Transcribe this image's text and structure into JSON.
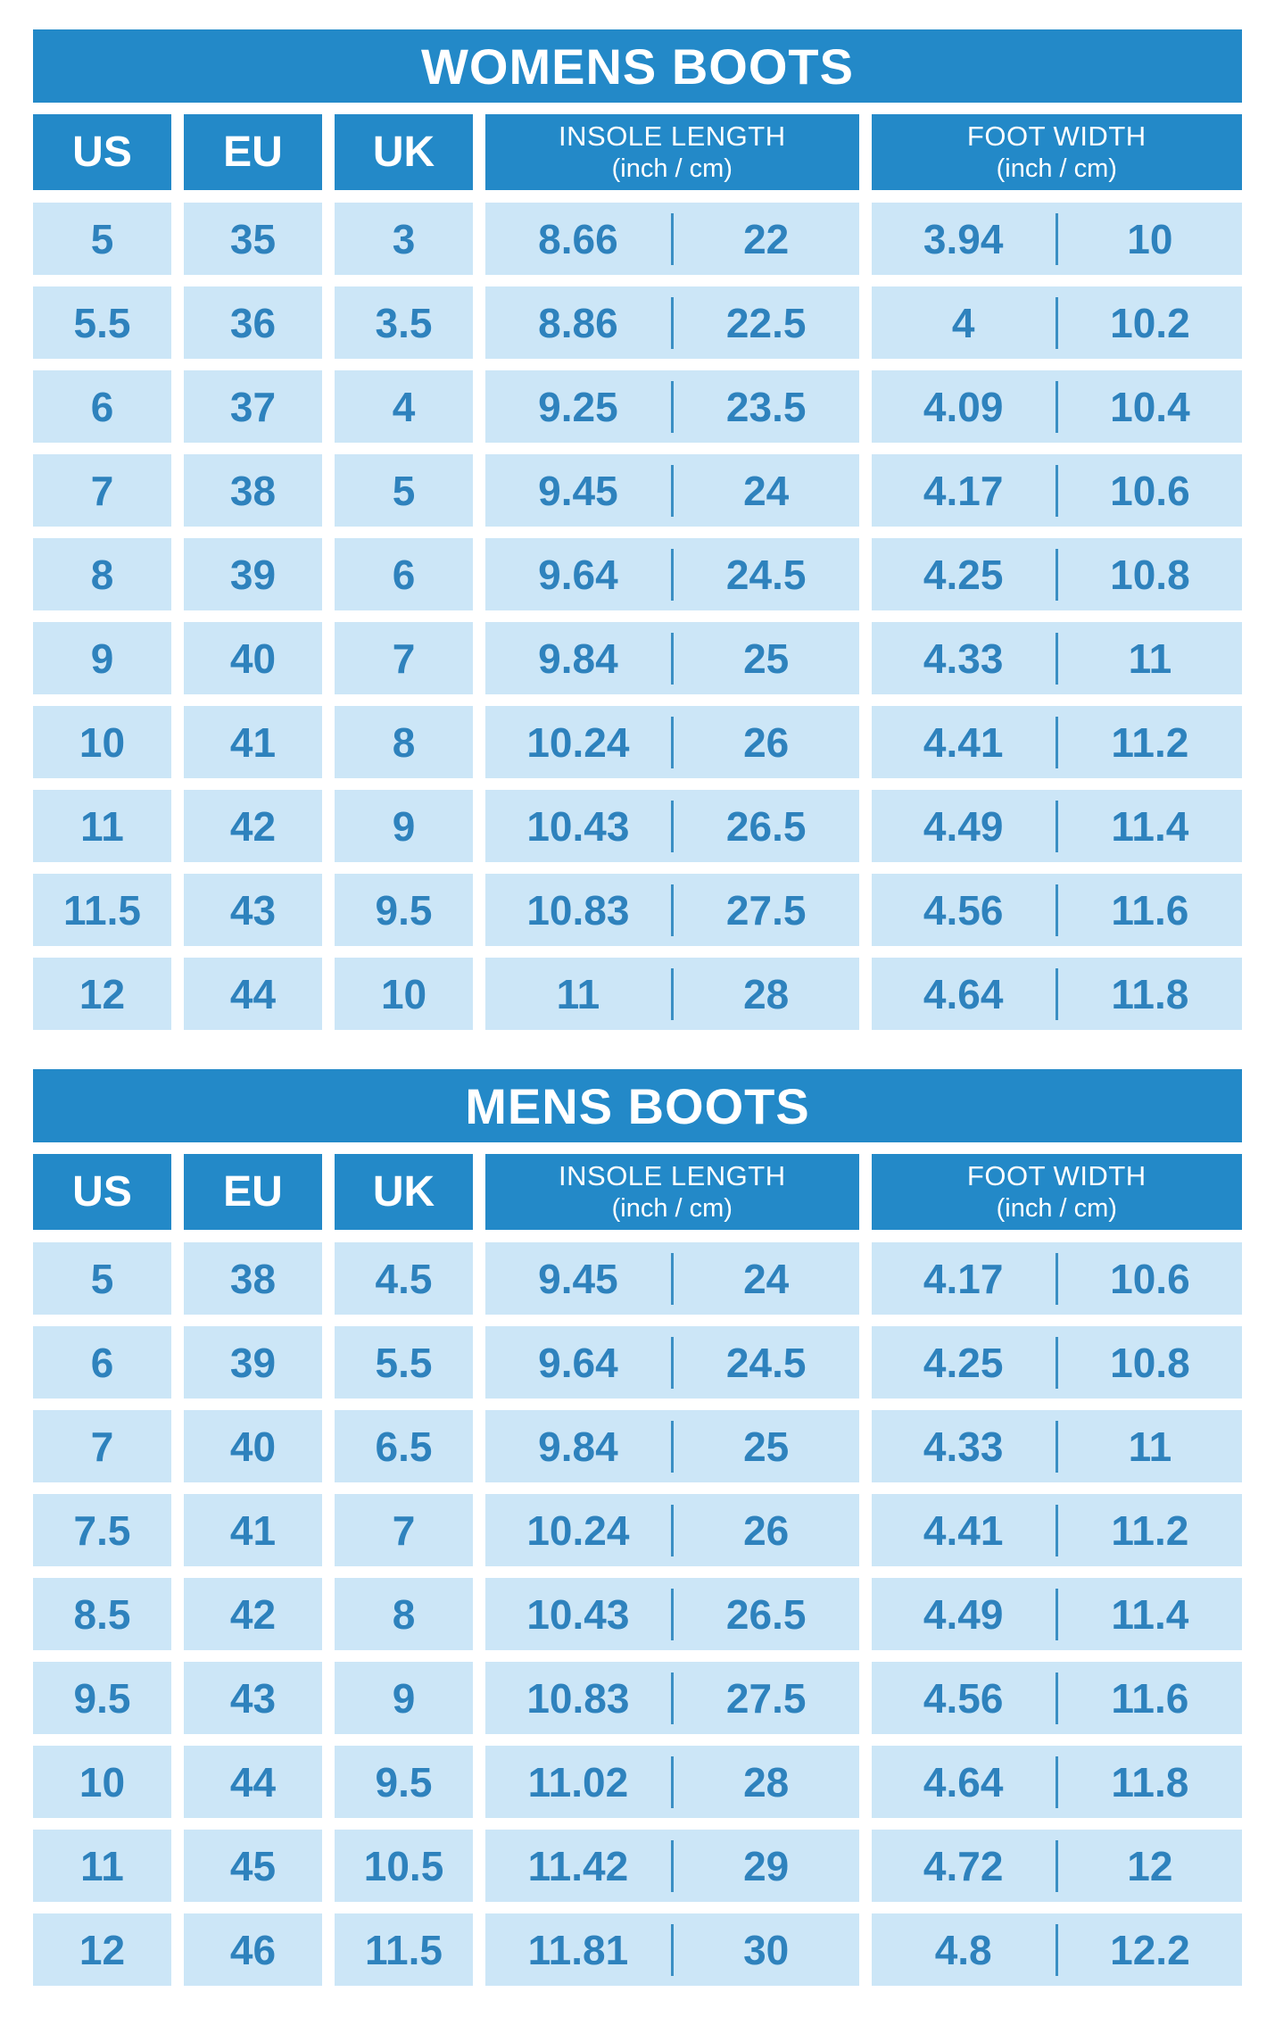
{
  "chart_data": [
    {
      "type": "table",
      "title": "WOMENS BOOTS",
      "columns": [
        "US",
        "EU",
        "UK",
        "INSOLE LENGTH",
        "FOOT WIDTH"
      ],
      "column_subs": [
        "",
        "",
        "",
        "(inch / cm)",
        "(inch / cm)"
      ],
      "rows": [
        [
          "5",
          "35",
          "3",
          "8.66",
          "22",
          "3.94",
          "10"
        ],
        [
          "5.5",
          "36",
          "3.5",
          "8.86",
          "22.5",
          "4",
          "10.2"
        ],
        [
          "6",
          "37",
          "4",
          "9.25",
          "23.5",
          "4.09",
          "10.4"
        ],
        [
          "7",
          "38",
          "5",
          "9.45",
          "24",
          "4.17",
          "10.6"
        ],
        [
          "8",
          "39",
          "6",
          "9.64",
          "24.5",
          "4.25",
          "10.8"
        ],
        [
          "9",
          "40",
          "7",
          "9.84",
          "25",
          "4.33",
          "11"
        ],
        [
          "10",
          "41",
          "8",
          "10.24",
          "26",
          "4.41",
          "11.2"
        ],
        [
          "11",
          "42",
          "9",
          "10.43",
          "26.5",
          "4.49",
          "11.4"
        ],
        [
          "11.5",
          "43",
          "9.5",
          "10.83",
          "27.5",
          "4.56",
          "11.6"
        ],
        [
          "12",
          "44",
          "10",
          "11",
          "28",
          "4.64",
          "11.8"
        ]
      ]
    },
    {
      "type": "table",
      "title": "MENS BOOTS",
      "columns": [
        "US",
        "EU",
        "UK",
        "INSOLE LENGTH",
        "FOOT WIDTH"
      ],
      "column_subs": [
        "",
        "",
        "",
        "(inch / cm)",
        "(inch / cm)"
      ],
      "rows": [
        [
          "5",
          "38",
          "4.5",
          "9.45",
          "24",
          "4.17",
          "10.6"
        ],
        [
          "6",
          "39",
          "5.5",
          "9.64",
          "24.5",
          "4.25",
          "10.8"
        ],
        [
          "7",
          "40",
          "6.5",
          "9.84",
          "25",
          "4.33",
          "11"
        ],
        [
          "7.5",
          "41",
          "7",
          "10.24",
          "26",
          "4.41",
          "11.2"
        ],
        [
          "8.5",
          "42",
          "8",
          "10.43",
          "26.5",
          "4.49",
          "11.4"
        ],
        [
          "9.5",
          "43",
          "9",
          "10.83",
          "27.5",
          "4.56",
          "11.6"
        ],
        [
          "10",
          "44",
          "9.5",
          "11.02",
          "28",
          "4.64",
          "11.8"
        ],
        [
          "11",
          "45",
          "10.5",
          "11.42",
          "29",
          "4.72",
          "12"
        ],
        [
          "12",
          "46",
          "11.5",
          "11.81",
          "30",
          "4.8",
          "12.2"
        ]
      ]
    }
  ],
  "colors": {
    "header_blue": "#2389c8",
    "cell_blue": "#cce6f7",
    "number_blue": "#2e82bd",
    "divider_blue": "#3a8fc4",
    "header_text": "#ffffff",
    "background": "#ffffff"
  }
}
